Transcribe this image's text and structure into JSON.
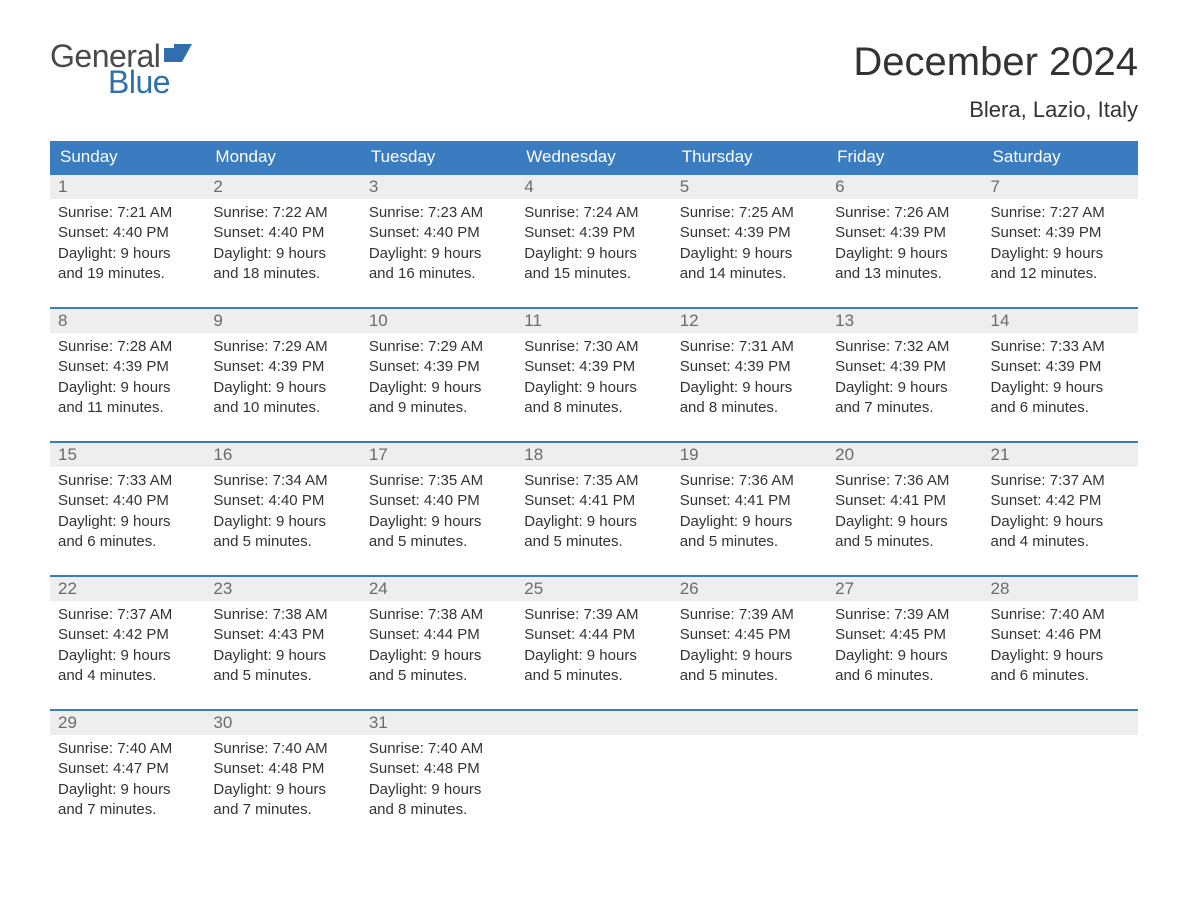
{
  "logo": {
    "text1": "General",
    "text2": "Blue",
    "color_general": "#4a4a4a",
    "color_blue": "#2f6fae"
  },
  "title": "December 2024",
  "location": "Blera, Lazio, Italy",
  "header_bg": "#3b7bbf",
  "header_text_color": "#ffffff",
  "daynum_bg": "#eeeeee",
  "weekdays": [
    "Sunday",
    "Monday",
    "Tuesday",
    "Wednesday",
    "Thursday",
    "Friday",
    "Saturday"
  ],
  "weeks": [
    [
      {
        "n": "1",
        "sunrise": "Sunrise: 7:21 AM",
        "sunset": "Sunset: 4:40 PM",
        "daylight": "Daylight: 9 hours and 19 minutes."
      },
      {
        "n": "2",
        "sunrise": "Sunrise: 7:22 AM",
        "sunset": "Sunset: 4:40 PM",
        "daylight": "Daylight: 9 hours and 18 minutes."
      },
      {
        "n": "3",
        "sunrise": "Sunrise: 7:23 AM",
        "sunset": "Sunset: 4:40 PM",
        "daylight": "Daylight: 9 hours and 16 minutes."
      },
      {
        "n": "4",
        "sunrise": "Sunrise: 7:24 AM",
        "sunset": "Sunset: 4:39 PM",
        "daylight": "Daylight: 9 hours and 15 minutes."
      },
      {
        "n": "5",
        "sunrise": "Sunrise: 7:25 AM",
        "sunset": "Sunset: 4:39 PM",
        "daylight": "Daylight: 9 hours and 14 minutes."
      },
      {
        "n": "6",
        "sunrise": "Sunrise: 7:26 AM",
        "sunset": "Sunset: 4:39 PM",
        "daylight": "Daylight: 9 hours and 13 minutes."
      },
      {
        "n": "7",
        "sunrise": "Sunrise: 7:27 AM",
        "sunset": "Sunset: 4:39 PM",
        "daylight": "Daylight: 9 hours and 12 minutes."
      }
    ],
    [
      {
        "n": "8",
        "sunrise": "Sunrise: 7:28 AM",
        "sunset": "Sunset: 4:39 PM",
        "daylight": "Daylight: 9 hours and 11 minutes."
      },
      {
        "n": "9",
        "sunrise": "Sunrise: 7:29 AM",
        "sunset": "Sunset: 4:39 PM",
        "daylight": "Daylight: 9 hours and 10 minutes."
      },
      {
        "n": "10",
        "sunrise": "Sunrise: 7:29 AM",
        "sunset": "Sunset: 4:39 PM",
        "daylight": "Daylight: 9 hours and 9 minutes."
      },
      {
        "n": "11",
        "sunrise": "Sunrise: 7:30 AM",
        "sunset": "Sunset: 4:39 PM",
        "daylight": "Daylight: 9 hours and 8 minutes."
      },
      {
        "n": "12",
        "sunrise": "Sunrise: 7:31 AM",
        "sunset": "Sunset: 4:39 PM",
        "daylight": "Daylight: 9 hours and 8 minutes."
      },
      {
        "n": "13",
        "sunrise": "Sunrise: 7:32 AM",
        "sunset": "Sunset: 4:39 PM",
        "daylight": "Daylight: 9 hours and 7 minutes."
      },
      {
        "n": "14",
        "sunrise": "Sunrise: 7:33 AM",
        "sunset": "Sunset: 4:39 PM",
        "daylight": "Daylight: 9 hours and 6 minutes."
      }
    ],
    [
      {
        "n": "15",
        "sunrise": "Sunrise: 7:33 AM",
        "sunset": "Sunset: 4:40 PM",
        "daylight": "Daylight: 9 hours and 6 minutes."
      },
      {
        "n": "16",
        "sunrise": "Sunrise: 7:34 AM",
        "sunset": "Sunset: 4:40 PM",
        "daylight": "Daylight: 9 hours and 5 minutes."
      },
      {
        "n": "17",
        "sunrise": "Sunrise: 7:35 AM",
        "sunset": "Sunset: 4:40 PM",
        "daylight": "Daylight: 9 hours and 5 minutes."
      },
      {
        "n": "18",
        "sunrise": "Sunrise: 7:35 AM",
        "sunset": "Sunset: 4:41 PM",
        "daylight": "Daylight: 9 hours and 5 minutes."
      },
      {
        "n": "19",
        "sunrise": "Sunrise: 7:36 AM",
        "sunset": "Sunset: 4:41 PM",
        "daylight": "Daylight: 9 hours and 5 minutes."
      },
      {
        "n": "20",
        "sunrise": "Sunrise: 7:36 AM",
        "sunset": "Sunset: 4:41 PM",
        "daylight": "Daylight: 9 hours and 5 minutes."
      },
      {
        "n": "21",
        "sunrise": "Sunrise: 7:37 AM",
        "sunset": "Sunset: 4:42 PM",
        "daylight": "Daylight: 9 hours and 4 minutes."
      }
    ],
    [
      {
        "n": "22",
        "sunrise": "Sunrise: 7:37 AM",
        "sunset": "Sunset: 4:42 PM",
        "daylight": "Daylight: 9 hours and 4 minutes."
      },
      {
        "n": "23",
        "sunrise": "Sunrise: 7:38 AM",
        "sunset": "Sunset: 4:43 PM",
        "daylight": "Daylight: 9 hours and 5 minutes."
      },
      {
        "n": "24",
        "sunrise": "Sunrise: 7:38 AM",
        "sunset": "Sunset: 4:44 PM",
        "daylight": "Daylight: 9 hours and 5 minutes."
      },
      {
        "n": "25",
        "sunrise": "Sunrise: 7:39 AM",
        "sunset": "Sunset: 4:44 PM",
        "daylight": "Daylight: 9 hours and 5 minutes."
      },
      {
        "n": "26",
        "sunrise": "Sunrise: 7:39 AM",
        "sunset": "Sunset: 4:45 PM",
        "daylight": "Daylight: 9 hours and 5 minutes."
      },
      {
        "n": "27",
        "sunrise": "Sunrise: 7:39 AM",
        "sunset": "Sunset: 4:45 PM",
        "daylight": "Daylight: 9 hours and 6 minutes."
      },
      {
        "n": "28",
        "sunrise": "Sunrise: 7:40 AM",
        "sunset": "Sunset: 4:46 PM",
        "daylight": "Daylight: 9 hours and 6 minutes."
      }
    ],
    [
      {
        "n": "29",
        "sunrise": "Sunrise: 7:40 AM",
        "sunset": "Sunset: 4:47 PM",
        "daylight": "Daylight: 9 hours and 7 minutes."
      },
      {
        "n": "30",
        "sunrise": "Sunrise: 7:40 AM",
        "sunset": "Sunset: 4:48 PM",
        "daylight": "Daylight: 9 hours and 7 minutes."
      },
      {
        "n": "31",
        "sunrise": "Sunrise: 7:40 AM",
        "sunset": "Sunset: 4:48 PM",
        "daylight": "Daylight: 9 hours and 8 minutes."
      },
      null,
      null,
      null,
      null
    ]
  ]
}
